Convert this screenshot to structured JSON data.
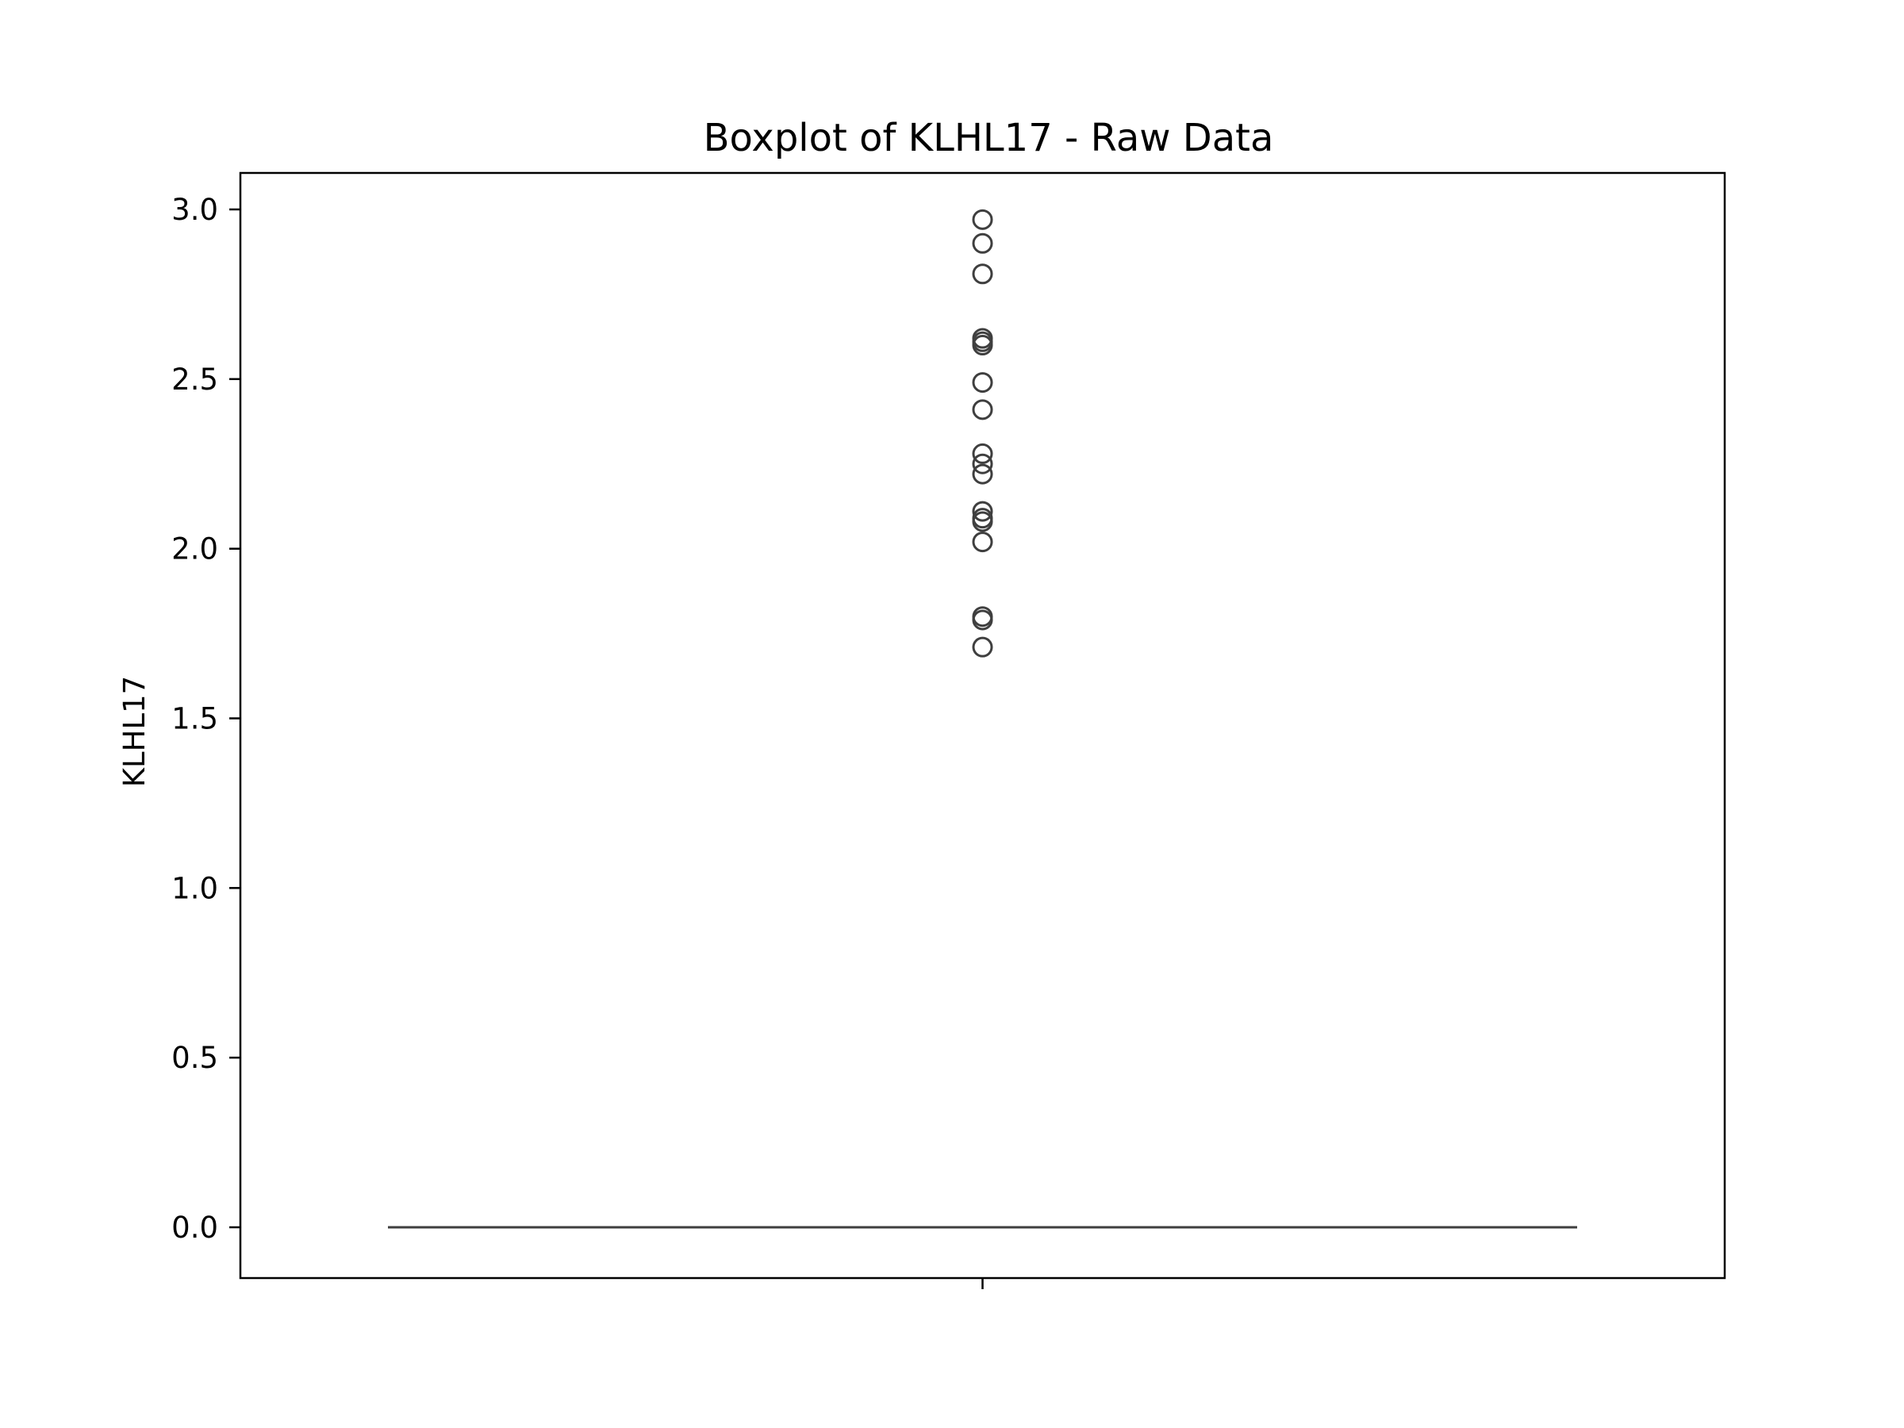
{
  "chart_data": {
    "type": "box",
    "title": "Boxplot of KLHL17 - Raw Data",
    "xlabel": "",
    "ylabel": "KLHL17",
    "ylim": [
      -0.15,
      3.12
    ],
    "yticks": [
      {
        "value": 0.0,
        "label": "0.0"
      },
      {
        "value": 0.5,
        "label": "0.5"
      },
      {
        "value": 1.0,
        "label": "1.0"
      },
      {
        "value": 1.5,
        "label": "1.5"
      },
      {
        "value": 2.0,
        "label": "2.0"
      },
      {
        "value": 2.5,
        "label": "2.5"
      },
      {
        "value": 3.0,
        "label": "3.0"
      }
    ],
    "xticks": [
      ""
    ],
    "grid": false,
    "box": {
      "q1": 0.0,
      "median": 0.0,
      "q3": 0.0,
      "whisker_low": 0.0,
      "whisker_high": 0.0
    },
    "outliers": [
      2.97,
      2.9,
      2.81,
      2.62,
      2.61,
      2.6,
      2.49,
      2.41,
      2.28,
      2.25,
      2.22,
      2.11,
      2.09,
      2.08,
      2.02,
      1.8,
      1.79,
      1.71
    ],
    "colors": {
      "box_line": "#3f3f3f",
      "axes": "#000000"
    }
  }
}
